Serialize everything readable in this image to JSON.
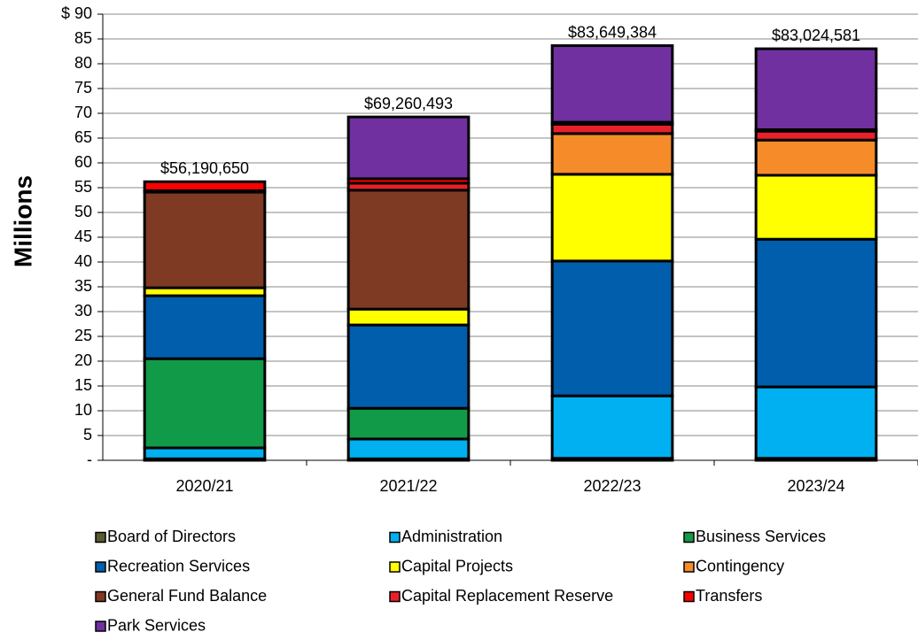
{
  "chart_data": {
    "type": "stacked_bar",
    "y_label": "Millions",
    "categories": [
      "2020/21",
      "2021/22",
      "2022/23",
      "2023/24"
    ],
    "series": [
      {
        "name": "Board of Directors",
        "color": "#5a5a32",
        "values": [
          0.3,
          0.3,
          0.4,
          0.4
        ]
      },
      {
        "name": "Administration",
        "color": "#00b0f0",
        "values": [
          2.2,
          4.0,
          12.6,
          14.4
        ]
      },
      {
        "name": "Business Services",
        "color": "#119a48",
        "values": [
          18.0,
          6.2,
          0,
          0
        ]
      },
      {
        "name": "Recreation Services",
        "color": "#005eac",
        "values": [
          12.7,
          16.8,
          27.2,
          29.8
        ]
      },
      {
        "name": "Capital Projects",
        "color": "#ffff00",
        "values": [
          1.6,
          3.2,
          17.5,
          12.9
        ]
      },
      {
        "name": "Contingency",
        "color": "#f68b2a",
        "values": [
          0,
          0,
          8.2,
          7.1
        ]
      },
      {
        "name": "General Fund Balance",
        "color": "#7e3a22",
        "values": [
          19.3,
          24.0,
          0,
          0
        ]
      },
      {
        "name": "Capital Replacement Reserve",
        "color": "#e8202a",
        "values": [
          0.3,
          1.4,
          1.9,
          1.8
        ]
      },
      {
        "name": "Transfers",
        "color": "#ff0000",
        "values": [
          1.8,
          0.9,
          0.4,
          0.3
        ]
      },
      {
        "name": "Park Services",
        "color": "#7030a0",
        "values": [
          0,
          12.46,
          15.45,
          16.32
        ]
      }
    ],
    "totals": {
      "values": [
        56.19065,
        69.260493,
        83.649384,
        83.024581
      ],
      "value_labels": [
        "$56,190,650",
        "$69,260,493",
        "$83,649,384",
        "$83,024,581"
      ]
    },
    "ylim": [
      0,
      90
    ],
    "yticks": [
      {
        "value": 0,
        "label": "-"
      },
      5,
      10,
      15,
      20,
      25,
      30,
      35,
      40,
      45,
      50,
      55,
      60,
      65,
      70,
      75,
      80,
      85,
      {
        "value": 90,
        "label": "$ 90"
      }
    ],
    "grid": true
  }
}
